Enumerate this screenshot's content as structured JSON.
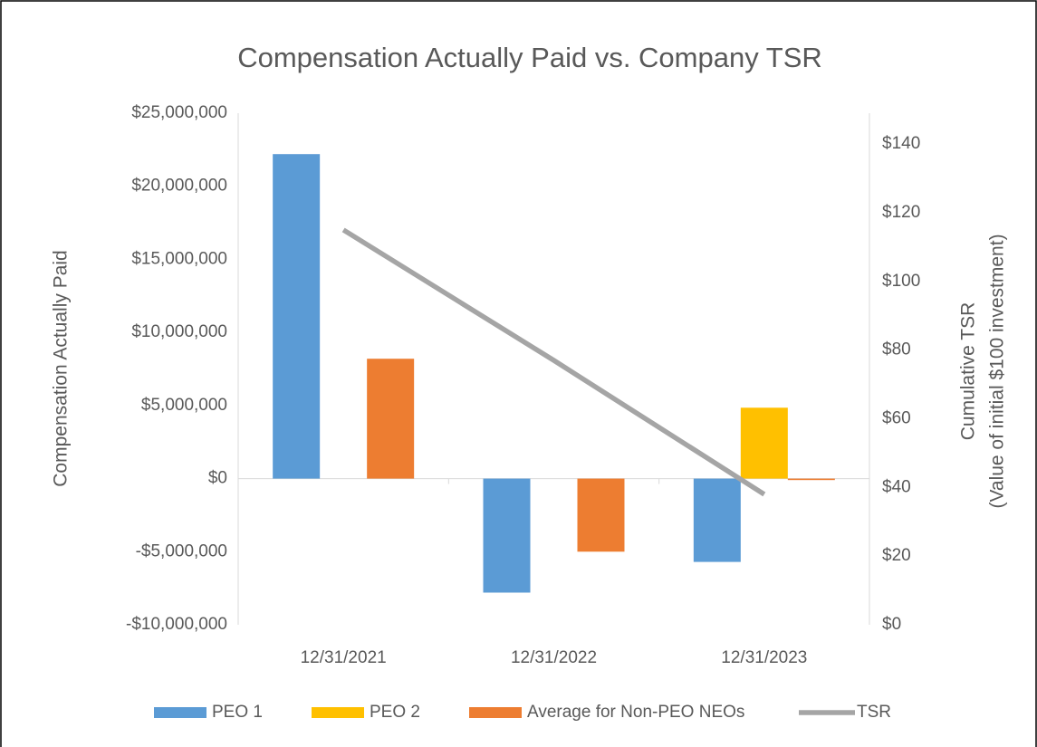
{
  "chart_data": {
    "type": "bar",
    "title": "Compensation Actually Paid vs. Company TSR",
    "ylabel": "Compensation Actually Paid",
    "y2label": [
      "Cumulative TSR",
      "(Value of initial $100  investment)"
    ],
    "categories": [
      "12/31/2021",
      "12/31/2022",
      "12/31/2023"
    ],
    "series": [
      {
        "name": "PEO 1",
        "color": "#5b9bd5",
        "values": [
          22200000,
          -7800000,
          -5700000
        ]
      },
      {
        "name": "PEO 2",
        "color": "#ffc000",
        "values": [
          null,
          null,
          4850000
        ]
      },
      {
        "name": "Average for Non-PEO NEOs",
        "color": "#ed7d31",
        "values": [
          8200000,
          -5000000,
          -100000
        ]
      },
      {
        "name": "TSR",
        "color": "#a5a5a5",
        "type": "line",
        "axis": "y2",
        "values": [
          115,
          77,
          38
        ]
      }
    ],
    "ylim": [
      -10000000,
      25000000
    ],
    "yticks": [
      {
        "value": -10000000,
        "label": "-$10,000,000"
      },
      {
        "value": -5000000,
        "label": "-$5,000,000"
      },
      {
        "value": 0,
        "label": "$0"
      },
      {
        "value": 5000000,
        "label": "$5,000,000"
      },
      {
        "value": 10000000,
        "label": "$10,000,000"
      },
      {
        "value": 15000000,
        "label": "$15,000,000"
      },
      {
        "value": 20000000,
        "label": "$20,000,000"
      },
      {
        "value": 25000000,
        "label": "$25,000,000"
      }
    ],
    "y2lim": [
      0,
      149
    ],
    "y2ticks": [
      {
        "value": 0,
        "label": "$0"
      },
      {
        "value": 20,
        "label": "$20"
      },
      {
        "value": 40,
        "label": "$40"
      },
      {
        "value": 60,
        "label": "$60"
      },
      {
        "value": 80,
        "label": "$80"
      },
      {
        "value": 100,
        "label": "$100"
      },
      {
        "value": 120,
        "label": "$120"
      },
      {
        "value": 140,
        "label": "$140"
      }
    ],
    "legend": "bottom",
    "grid": false
  }
}
